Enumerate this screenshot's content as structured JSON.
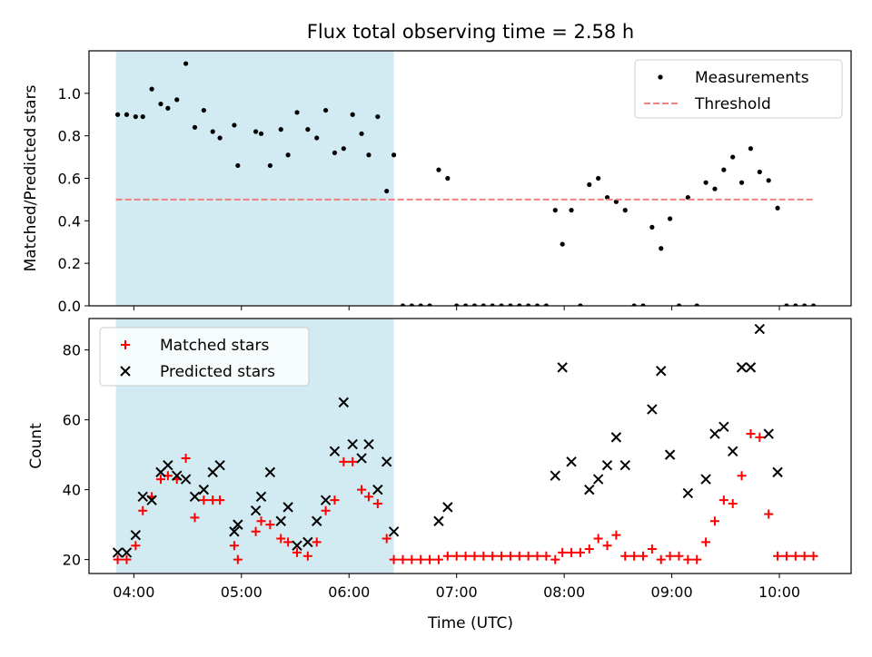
{
  "figure": {
    "title": "Flux total observing time = 2.58 h",
    "xlabel": "Time (UTC)",
    "shade_color": "#add8e6",
    "x_ticks": [
      "04:00",
      "05:00",
      "06:00",
      "07:00",
      "08:00",
      "09:00",
      "10:00"
    ]
  },
  "chart_data": [
    {
      "type": "scatter",
      "ylabel": "Matched/Predicted stars",
      "ylim": [
        0,
        1.2
      ],
      "xlim": [
        "03:35",
        "10:40"
      ],
      "y_ticks": [
        "0.0",
        "0.2",
        "0.4",
        "0.6",
        "0.8",
        "1.0"
      ],
      "shaded_interval": [
        "03:50",
        "06:25"
      ],
      "legend_position": "top-right",
      "series": [
        {
          "name": "Measurements",
          "color": "#000000",
          "marker": "dot",
          "points": [
            [
              "03:51",
              0.9
            ],
            [
              "03:56",
              0.9
            ],
            [
              "04:01",
              0.89
            ],
            [
              "04:05",
              0.89
            ],
            [
              "04:10",
              1.02
            ],
            [
              "04:15",
              0.95
            ],
            [
              "04:19",
              0.93
            ],
            [
              "04:24",
              0.97
            ],
            [
              "04:29",
              1.14
            ],
            [
              "04:34",
              0.84
            ],
            [
              "04:39",
              0.92
            ],
            [
              "04:44",
              0.82
            ],
            [
              "04:48",
              0.79
            ],
            [
              "04:56",
              0.85
            ],
            [
              "04:58",
              0.66
            ],
            [
              "05:08",
              0.82
            ],
            [
              "05:11",
              0.81
            ],
            [
              "05:16",
              0.66
            ],
            [
              "05:22",
              0.83
            ],
            [
              "05:26",
              0.71
            ],
            [
              "05:31",
              0.91
            ],
            [
              "05:37",
              0.83
            ],
            [
              "05:42",
              0.79
            ],
            [
              "05:47",
              0.92
            ],
            [
              "05:52",
              0.72
            ],
            [
              "05:57",
              0.74
            ],
            [
              "06:02",
              0.9
            ],
            [
              "06:07",
              0.81
            ],
            [
              "06:11",
              0.71
            ],
            [
              "06:16",
              0.89
            ],
            [
              "06:21",
              0.54
            ],
            [
              "06:25",
              0.71
            ],
            [
              "06:30",
              0.0
            ],
            [
              "06:35",
              0.0
            ],
            [
              "06:40",
              0.0
            ],
            [
              "06:45",
              0.0
            ],
            [
              "06:50",
              0.64
            ],
            [
              "06:55",
              0.6
            ],
            [
              "07:00",
              0.0
            ],
            [
              "07:05",
              0.0
            ],
            [
              "07:10",
              0.0
            ],
            [
              "07:15",
              0.0
            ],
            [
              "07:20",
              0.0
            ],
            [
              "07:25",
              0.0
            ],
            [
              "07:30",
              0.0
            ],
            [
              "07:35",
              0.0
            ],
            [
              "07:40",
              0.0
            ],
            [
              "07:45",
              0.0
            ],
            [
              "07:50",
              0.0
            ],
            [
              "07:55",
              0.45
            ],
            [
              "07:59",
              0.29
            ],
            [
              "08:04",
              0.45
            ],
            [
              "08:09",
              0.0
            ],
            [
              "08:14",
              0.57
            ],
            [
              "08:19",
              0.6
            ],
            [
              "08:24",
              0.51
            ],
            [
              "08:29",
              0.49
            ],
            [
              "08:34",
              0.45
            ],
            [
              "08:39",
              0.0
            ],
            [
              "08:44",
              0.0
            ],
            [
              "08:49",
              0.37
            ],
            [
              "08:54",
              0.27
            ],
            [
              "08:59",
              0.41
            ],
            [
              "09:04",
              0.0
            ],
            [
              "09:09",
              0.51
            ],
            [
              "09:14",
              0.0
            ],
            [
              "09:19",
              0.58
            ],
            [
              "09:24",
              0.55
            ],
            [
              "09:29",
              0.64
            ],
            [
              "09:34",
              0.7
            ],
            [
              "09:39",
              0.58
            ],
            [
              "09:44",
              0.74
            ],
            [
              "09:49",
              0.63
            ],
            [
              "09:54",
              0.59
            ],
            [
              "09:59",
              0.46
            ],
            [
              "10:04",
              0.0
            ],
            [
              "10:09",
              0.0
            ],
            [
              "10:14",
              0.0
            ],
            [
              "10:19",
              0.0
            ]
          ]
        },
        {
          "name": "Threshold",
          "color": "#f08080",
          "style": "dashed",
          "points": [
            [
              "03:50",
              0.5
            ],
            [
              "10:20",
              0.5
            ]
          ]
        }
      ]
    },
    {
      "type": "scatter",
      "ylabel": "Count",
      "ylim": [
        16,
        89
      ],
      "xlim": [
        "03:35",
        "10:40"
      ],
      "y_ticks": [
        "20",
        "40",
        "60",
        "80"
      ],
      "shaded_interval": [
        "03:50",
        "06:25"
      ],
      "legend_position": "top-left",
      "series": [
        {
          "name": "Matched stars",
          "color": "#ff0000",
          "marker": "plus",
          "points": [
            [
              "03:51",
              20
            ],
            [
              "03:56",
              20
            ],
            [
              "04:01",
              24
            ],
            [
              "04:05",
              34
            ],
            [
              "04:10",
              38
            ],
            [
              "04:15",
              43
            ],
            [
              "04:19",
              44
            ],
            [
              "04:24",
              43
            ],
            [
              "04:29",
              49
            ],
            [
              "04:34",
              32
            ],
            [
              "04:39",
              37
            ],
            [
              "04:44",
              37
            ],
            [
              "04:48",
              37
            ],
            [
              "04:56",
              24
            ],
            [
              "04:58",
              20
            ],
            [
              "05:08",
              28
            ],
            [
              "05:11",
              31
            ],
            [
              "05:16",
              30
            ],
            [
              "05:22",
              26
            ],
            [
              "05:26",
              25
            ],
            [
              "05:31",
              22
            ],
            [
              "05:37",
              21
            ],
            [
              "05:42",
              25
            ],
            [
              "05:47",
              34
            ],
            [
              "05:52",
              37
            ],
            [
              "05:57",
              48
            ],
            [
              "06:02",
              48
            ],
            [
              "06:07",
              40
            ],
            [
              "06:11",
              38
            ],
            [
              "06:16",
              36
            ],
            [
              "06:21",
              26
            ],
            [
              "06:25",
              20
            ],
            [
              "06:30",
              20
            ],
            [
              "06:35",
              20
            ],
            [
              "06:40",
              20
            ],
            [
              "06:45",
              20
            ],
            [
              "06:50",
              20
            ],
            [
              "06:55",
              21
            ],
            [
              "07:00",
              21
            ],
            [
              "07:05",
              21
            ],
            [
              "07:10",
              21
            ],
            [
              "07:15",
              21
            ],
            [
              "07:20",
              21
            ],
            [
              "07:25",
              21
            ],
            [
              "07:30",
              21
            ],
            [
              "07:35",
              21
            ],
            [
              "07:40",
              21
            ],
            [
              "07:45",
              21
            ],
            [
              "07:50",
              21
            ],
            [
              "07:55",
              20
            ],
            [
              "07:59",
              22
            ],
            [
              "08:04",
              22
            ],
            [
              "08:09",
              22
            ],
            [
              "08:14",
              23
            ],
            [
              "08:19",
              26
            ],
            [
              "08:24",
              24
            ],
            [
              "08:29",
              27
            ],
            [
              "08:34",
              21
            ],
            [
              "08:39",
              21
            ],
            [
              "08:44",
              21
            ],
            [
              "08:49",
              23
            ],
            [
              "08:54",
              20
            ],
            [
              "08:59",
              21
            ],
            [
              "09:04",
              21
            ],
            [
              "09:09",
              20
            ],
            [
              "09:14",
              20
            ],
            [
              "09:19",
              25
            ],
            [
              "09:24",
              31
            ],
            [
              "09:29",
              37
            ],
            [
              "09:34",
              36
            ],
            [
              "09:39",
              44
            ],
            [
              "09:44",
              56
            ],
            [
              "09:49",
              55
            ],
            [
              "09:54",
              33
            ],
            [
              "09:59",
              21
            ],
            [
              "10:04",
              21
            ],
            [
              "10:09",
              21
            ],
            [
              "10:14",
              21
            ],
            [
              "10:19",
              21
            ]
          ]
        },
        {
          "name": "Predicted stars",
          "color": "#000000",
          "marker": "x",
          "points": [
            [
              "03:51",
              22
            ],
            [
              "03:56",
              22
            ],
            [
              "04:01",
              27
            ],
            [
              "04:05",
              38
            ],
            [
              "04:10",
              37
            ],
            [
              "04:15",
              45
            ],
            [
              "04:19",
              47
            ],
            [
              "04:24",
              44
            ],
            [
              "04:29",
              43
            ],
            [
              "04:34",
              38
            ],
            [
              "04:39",
              40
            ],
            [
              "04:44",
              45
            ],
            [
              "04:48",
              47
            ],
            [
              "04:56",
              28
            ],
            [
              "04:58",
              30
            ],
            [
              "05:08",
              34
            ],
            [
              "05:11",
              38
            ],
            [
              "05:16",
              45
            ],
            [
              "05:22",
              31
            ],
            [
              "05:26",
              35
            ],
            [
              "05:31",
              24
            ],
            [
              "05:37",
              25
            ],
            [
              "05:42",
              31
            ],
            [
              "05:47",
              37
            ],
            [
              "05:52",
              51
            ],
            [
              "05:57",
              65
            ],
            [
              "06:02",
              53
            ],
            [
              "06:07",
              49
            ],
            [
              "06:11",
              53
            ],
            [
              "06:16",
              40
            ],
            [
              "06:21",
              48
            ],
            [
              "06:25",
              28
            ],
            [
              "06:50",
              31
            ],
            [
              "06:55",
              35
            ],
            [
              "07:55",
              44
            ],
            [
              "07:59",
              75
            ],
            [
              "08:04",
              48
            ],
            [
              "08:14",
              40
            ],
            [
              "08:19",
              43
            ],
            [
              "08:24",
              47
            ],
            [
              "08:29",
              55
            ],
            [
              "08:34",
              47
            ],
            [
              "08:49",
              63
            ],
            [
              "08:54",
              74
            ],
            [
              "08:59",
              50
            ],
            [
              "09:09",
              39
            ],
            [
              "09:19",
              43
            ],
            [
              "09:24",
              56
            ],
            [
              "09:29",
              58
            ],
            [
              "09:34",
              51
            ],
            [
              "09:39",
              75
            ],
            [
              "09:44",
              75
            ],
            [
              "09:49",
              86
            ],
            [
              "09:54",
              56
            ],
            [
              "09:59",
              45
            ]
          ]
        }
      ]
    }
  ]
}
